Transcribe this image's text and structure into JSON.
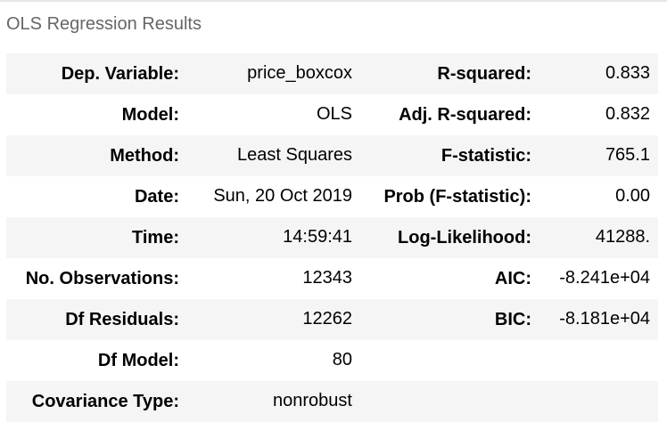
{
  "caption": "OLS Regression Results",
  "rows": [
    {
      "l1": "Dep. Variable:",
      "v1": "price_boxcox",
      "l2": "R-squared:",
      "v2": "0.833"
    },
    {
      "l1": "Model:",
      "v1": "OLS",
      "l2": "Adj. R-squared:",
      "v2": "0.832"
    },
    {
      "l1": "Method:",
      "v1": "Least Squares",
      "l2": "F-statistic:",
      "v2": "765.1"
    },
    {
      "l1": "Date:",
      "v1": "Sun, 20 Oct 2019",
      "l2": "Prob (F-statistic):",
      "v2": "0.00"
    },
    {
      "l1": "Time:",
      "v1": "14:59:41",
      "l2": "Log-Likelihood:",
      "v2": "41288."
    },
    {
      "l1": "No. Observations:",
      "v1": "12343",
      "l2": "AIC:",
      "v2": "-8.241e+04"
    },
    {
      "l1": "Df Residuals:",
      "v1": "12262",
      "l2": "BIC:",
      "v2": "-8.181e+04"
    },
    {
      "l1": "Df Model:",
      "v1": "80",
      "l2": "",
      "v2": ""
    },
    {
      "l1": "Covariance Type:",
      "v1": "nonrobust",
      "l2": "",
      "v2": ""
    }
  ],
  "colors": {
    "stripe": "#f5f5f5",
    "caption": "#666666"
  }
}
